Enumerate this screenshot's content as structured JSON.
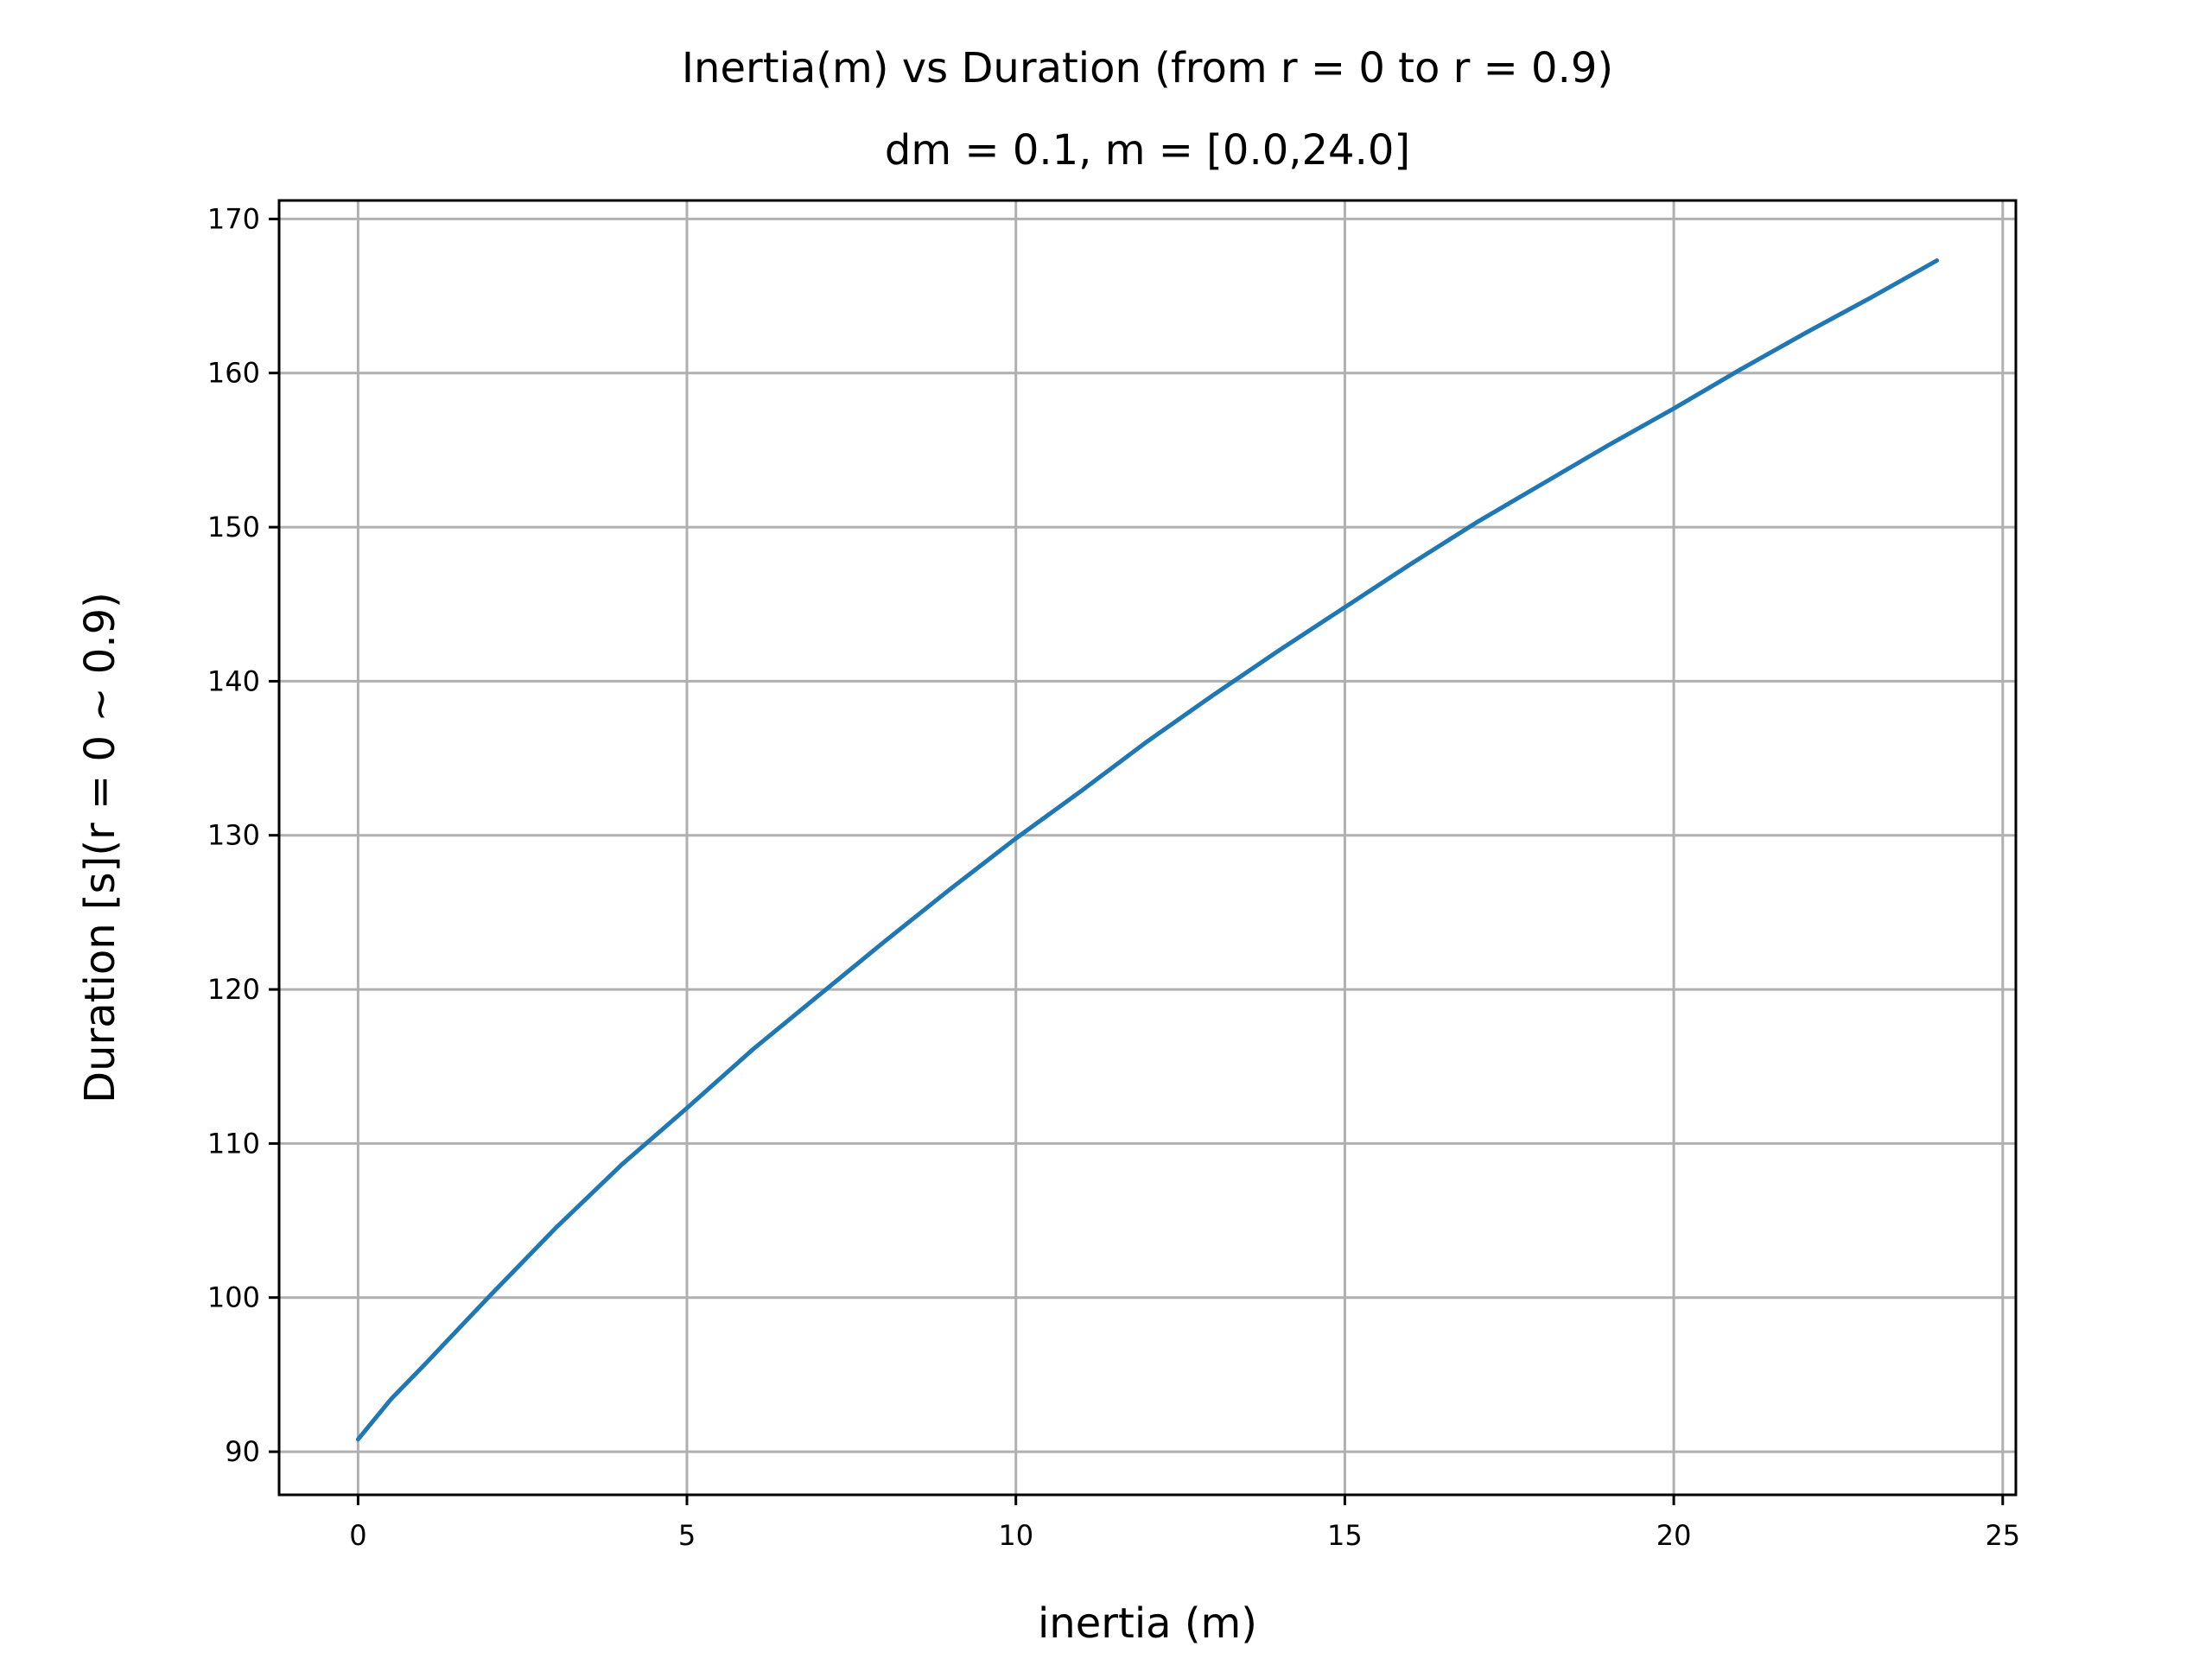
{
  "chart_data": {
    "type": "line",
    "title": "Inertia(m) vs Duration (from r = 0 to r = 0.9)",
    "subtitle": "dm = 0.1, m = [0.0,24.0]",
    "xlabel": "inertia (m)",
    "ylabel": "Duration [s](r = 0 ~ 0.9)",
    "xlim": [
      -1.2,
      25.2
    ],
    "ylim": [
      87.2,
      171.2
    ],
    "xticks": [
      0,
      5,
      10,
      15,
      20,
      25
    ],
    "yticks": [
      90,
      100,
      110,
      120,
      130,
      140,
      150,
      160,
      170
    ],
    "grid": true,
    "color": "#1f77b4",
    "series": [
      {
        "x": [
          0,
          0.5,
          1,
          2,
          3,
          4,
          5,
          6,
          7,
          8,
          9,
          10,
          11,
          12,
          13,
          14,
          15,
          16,
          17,
          18,
          19,
          20,
          21,
          22,
          23,
          24
        ],
        "y": [
          90.8,
          93.4,
          95.6,
          100.1,
          104.5,
          108.6,
          112.3,
          116.1,
          119.6,
          123.1,
          126.5,
          129.8,
          132.9,
          136.1,
          139.1,
          142.0,
          144.8,
          147.6,
          150.3,
          152.8,
          155.3,
          157.7,
          160.2,
          162.6,
          164.9,
          167.3
        ]
      }
    ]
  }
}
